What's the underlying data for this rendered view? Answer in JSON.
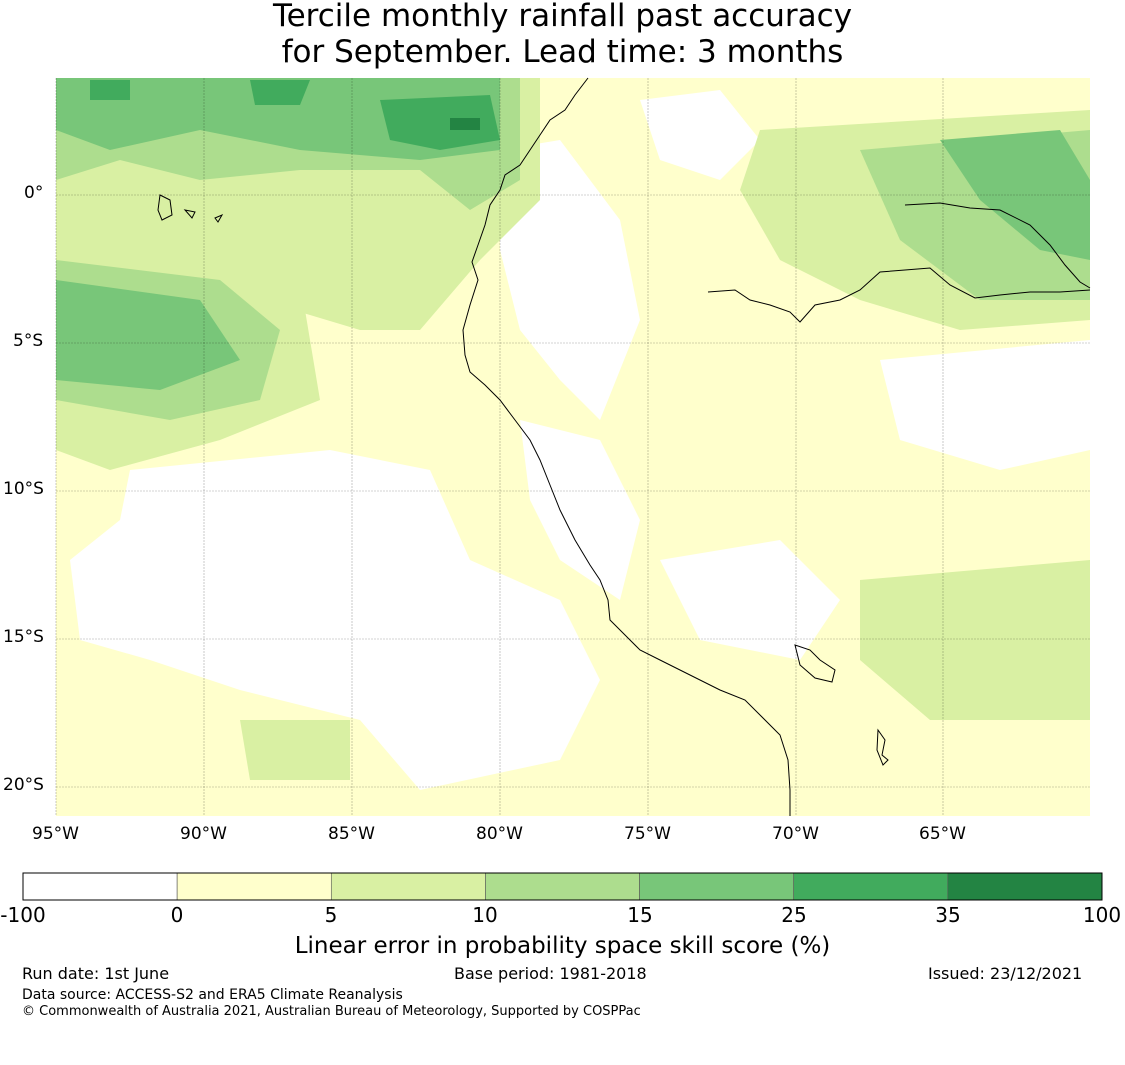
{
  "title_line1": "Tercile monthly rainfall past accuracy",
  "title_line2": "for September. Lead time: 3 months",
  "map": {
    "lon_labels": [
      "95°W",
      "90°W",
      "85°W",
      "80°W",
      "75°W",
      "70°W",
      "65°W"
    ],
    "lat_labels": [
      "0°",
      "5°S",
      "10°S",
      "15°S",
      "20°S"
    ]
  },
  "colorbar": {
    "title": "Linear error in probability space skill score (%)",
    "ticks": [
      "-100",
      "0",
      "5",
      "10",
      "15",
      "25",
      "35",
      "100"
    ],
    "colors": [
      "#ffffff",
      "#ffffcc",
      "#d9f0a3",
      "#addd8e",
      "#78c679",
      "#41ab5d",
      "#238443"
    ]
  },
  "footer": {
    "run_date": "Run date: 1st June",
    "base_period": "Base period: 1981-2018",
    "issued": "Issued: 23/12/2021",
    "data_source": "Data source: ACCESS-S2 and ERA5 Climate Reanalysis",
    "copyright": "© Commonwealth of Australia 2021, Australian Bureau of Meteorology, Supported by COSPPac"
  }
}
